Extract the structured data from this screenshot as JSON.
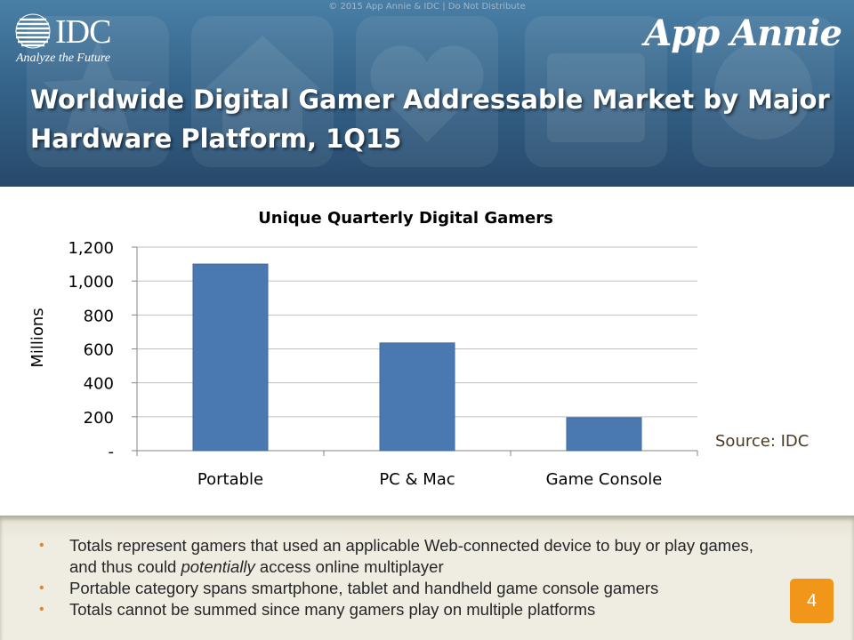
{
  "header": {
    "copyright": "© 2015 App Annie & IDC | Do Not Distribute",
    "idc_name": "IDC",
    "idc_tagline": "Analyze the Future",
    "app_annie_logo": "App Annie",
    "title": "Worldwide Digital Gamer Addressable Market by Major Hardware Platform, 1Q15"
  },
  "chart_data": {
    "type": "bar",
    "title": "Unique Quarterly Digital Gamers",
    "xlabel": "",
    "ylabel": "Millions",
    "categories": [
      "Portable",
      "PC & Mac",
      "Game Console"
    ],
    "values": [
      1100,
      635,
      195
    ],
    "ylim": [
      0,
      1200
    ],
    "yticks": [
      0,
      200,
      400,
      600,
      800,
      1000,
      1200
    ],
    "ytick_labels": [
      "-",
      "200",
      "400",
      "600",
      "800",
      "1,000",
      "1,200"
    ],
    "grid": true,
    "bar_color": "#4a78b0"
  },
  "source": "Source: IDC",
  "notes": {
    "bullets": [
      {
        "pre": "Totals represent gamers that used an applicable Web-connected device to buy or play games, and thus could ",
        "em": "potentially",
        "post": " access online multiplayer"
      },
      {
        "pre": "Portable category spans smartphone, tablet and handheld game console gamers",
        "em": "",
        "post": ""
      },
      {
        "pre": "Totals cannot be summed since many gamers play on multiple platforms",
        "em": "",
        "post": ""
      }
    ],
    "bullet_color": "#e2862a"
  },
  "page_number": "4",
  "colors": {
    "header_bg": "#35648a",
    "accent_orange": "#f2961a"
  }
}
